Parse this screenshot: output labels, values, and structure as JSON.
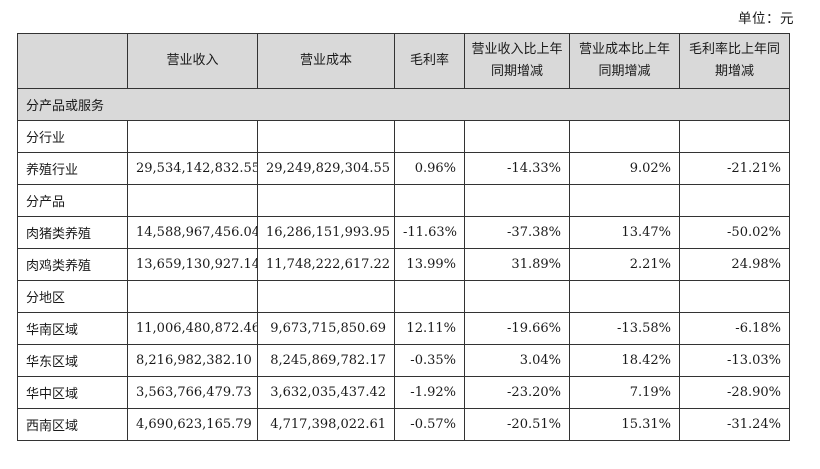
{
  "unit_label": "单位：元",
  "headers": [
    "",
    "营业收入",
    "营业成本",
    "毛利率",
    "营业收入比上年同期增减",
    "营业成本比上年同期增减",
    "毛利率比上年同期增减"
  ],
  "section_band": "分产品或服务",
  "groups": [
    {
      "label": "分行业",
      "rows": [
        {
          "name": "养殖行业",
          "revenue": "29,534,142,832.55",
          "cost": "29,249,829,304.55",
          "margin": "0.96%",
          "rev_change": "-14.33%",
          "cost_change": "9.02%",
          "margin_change": "-21.21%"
        }
      ]
    },
    {
      "label": "分产品",
      "rows": [
        {
          "name": "肉猪类养殖",
          "revenue": "14,588,967,456.04",
          "cost": "16,286,151,993.95",
          "margin": "-11.63%",
          "rev_change": "-37.38%",
          "cost_change": "13.47%",
          "margin_change": "-50.02%"
        },
        {
          "name": "肉鸡类养殖",
          "revenue": "13,659,130,927.14",
          "cost": "11,748,222,617.22",
          "margin": "13.99%",
          "rev_change": "31.89%",
          "cost_change": "2.21%",
          "margin_change": "24.98%"
        }
      ]
    },
    {
      "label": "分地区",
      "rows": [
        {
          "name": "华南区域",
          "revenue": "11,006,480,872.46",
          "cost": "9,673,715,850.69",
          "margin": "12.11%",
          "rev_change": "-19.66%",
          "cost_change": "-13.58%",
          "margin_change": "-6.18%"
        },
        {
          "name": "华东区域",
          "revenue": "8,216,982,382.10",
          "cost": "8,245,869,782.17",
          "margin": "-0.35%",
          "rev_change": "3.04%",
          "cost_change": "18.42%",
          "margin_change": "-13.03%"
        },
        {
          "name": "华中区域",
          "revenue": "3,563,766,479.73",
          "cost": "3,632,035,437.42",
          "margin": "-1.92%",
          "rev_change": "-23.20%",
          "cost_change": "7.19%",
          "margin_change": "-28.90%"
        },
        {
          "name": "西南区域",
          "revenue": "4,690,623,165.79",
          "cost": "4,717,398,022.61",
          "margin": "-0.57%",
          "rev_change": "-20.51%",
          "cost_change": "15.31%",
          "margin_change": "-31.24%"
        }
      ]
    }
  ]
}
